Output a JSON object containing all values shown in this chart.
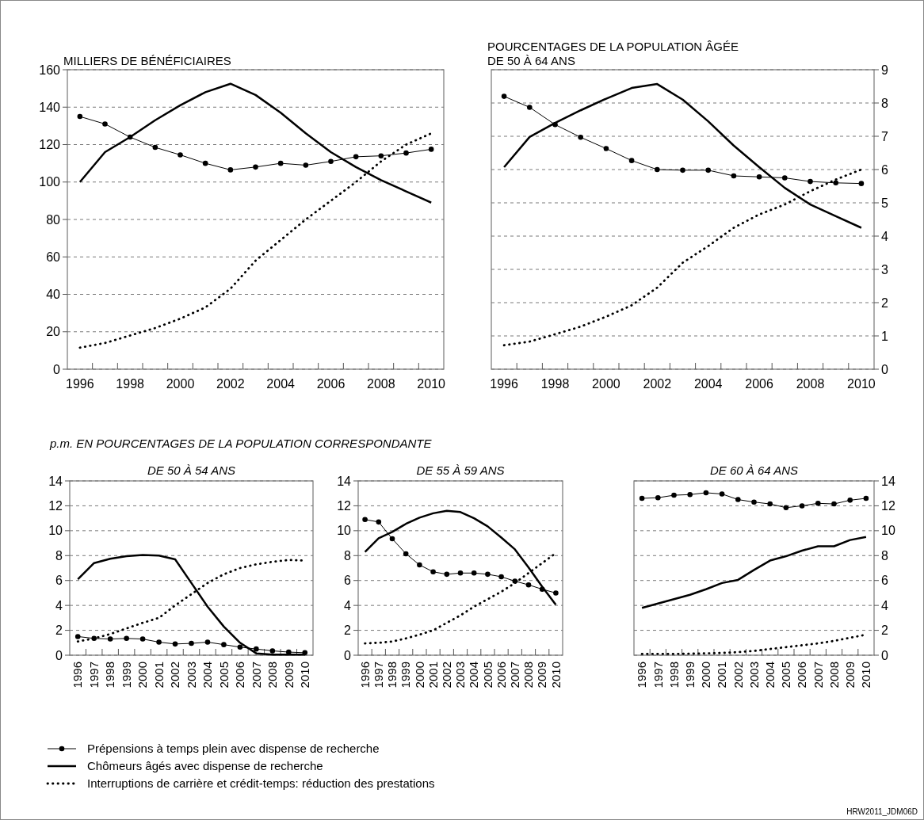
{
  "chart_data": [
    {
      "type": "line",
      "ylabel": "MILLIERS DE BÉNÉFICIAIRES",
      "categories": [
        "1996",
        null,
        "1998",
        null,
        "2000",
        null,
        "2002",
        null,
        "2004",
        null,
        "2006",
        null,
        "2008",
        null,
        "2010"
      ],
      "ylim": [
        0,
        160
      ],
      "yticks": [
        0,
        20,
        40,
        60,
        80,
        100,
        120,
        140,
        160
      ],
      "grid": "y",
      "legend": "bottom",
      "series": [
        {
          "name": "Prépensions à temps plein avec dispense de recherche",
          "color": "#000000",
          "marker": "circle",
          "line_style": "solid",
          "values": [
            135,
            131,
            124,
            118.5,
            114.5,
            110,
            106.5,
            108,
            110,
            109,
            111,
            113.5,
            114,
            115.5,
            117.5
          ]
        },
        {
          "name": "Chômeurs âgés avec dispense de recherche",
          "color": "#000000",
          "marker": "none",
          "line_style": "solid",
          "values": [
            100,
            116,
            124,
            133,
            141,
            148,
            152.5,
            146.5,
            137,
            126,
            116,
            108,
            101,
            95,
            89
          ]
        },
        {
          "name": "Interruptions de carrière et crédit-temps: réduction des prestations",
          "color": "#000000",
          "marker": "none",
          "line_style": "dotted",
          "values": [
            11.5,
            14,
            18,
            22,
            27,
            33,
            43,
            58,
            69,
            80,
            90,
            100,
            111,
            120,
            126
          ]
        }
      ]
    },
    {
      "type": "line",
      "y2label": "POURCENTAGES DE LA POPULATION ÂGÉE DE 50 À 64 ANS",
      "categories": [
        "1996",
        null,
        "1998",
        null,
        "2000",
        null,
        "2002",
        null,
        "2004",
        null,
        "2006",
        null,
        "2008",
        null,
        "2010"
      ],
      "y2lim": [
        0,
        9
      ],
      "y2ticks": [
        0,
        1,
        2,
        3,
        4,
        5,
        6,
        7,
        8,
        9
      ],
      "grid": "y",
      "series": [
        {
          "color": "#000000",
          "marker": "circle",
          "line_style": "solid",
          "axis": "y2",
          "values": [
            8.2,
            7.87,
            7.35,
            6.97,
            6.63,
            6.27,
            6.0,
            5.98,
            5.98,
            5.81,
            5.78,
            5.75,
            5.64,
            5.6,
            5.58
          ]
        },
        {
          "color": "#000000",
          "marker": "none",
          "line_style": "solid",
          "axis": "y2",
          "values": [
            6.07,
            6.98,
            7.4,
            7.78,
            8.13,
            8.45,
            8.57,
            8.1,
            7.45,
            6.72,
            6.07,
            5.45,
            4.95,
            4.6,
            4.25
          ]
        },
        {
          "color": "#000000",
          "marker": "none",
          "line_style": "dotted",
          "axis": "y2",
          "values": [
            0.72,
            0.83,
            1.05,
            1.28,
            1.58,
            1.92,
            2.45,
            3.2,
            3.7,
            4.25,
            4.65,
            4.95,
            5.35,
            5.7,
            6.0
          ]
        }
      ]
    },
    {
      "type": "line",
      "subtitle": "p.m. EN POURCENTAGES DE LA POPULATION CORRESPONDANTE",
      "title": "DE 50 À 54 ANS",
      "categories": [
        "1996",
        "1997",
        "1998",
        "1999",
        "2000",
        "2001",
        "2002",
        "2003",
        "2004",
        "2005",
        "2006",
        "2007",
        "2008",
        "2009",
        "2010"
      ],
      "ylim": [
        0,
        14
      ],
      "yticks": [
        0,
        2,
        4,
        6,
        8,
        10,
        12,
        14
      ],
      "grid": "y",
      "series": [
        {
          "color": "#000000",
          "marker": "circle",
          "line_style": "solid",
          "values": [
            1.5,
            1.35,
            1.3,
            1.35,
            1.3,
            1.05,
            0.9,
            0.95,
            1.05,
            0.85,
            0.65,
            0.5,
            0.35,
            0.25,
            0.2
          ]
        },
        {
          "color": "#000000",
          "marker": "none",
          "line_style": "solid",
          "values": [
            6.1,
            7.4,
            7.75,
            7.95,
            8.05,
            8.0,
            7.7,
            5.8,
            3.9,
            2.3,
            1.0,
            0.15,
            0.05,
            0.05,
            0.05
          ]
        },
        {
          "color": "#000000",
          "marker": "none",
          "line_style": "dotted",
          "values": [
            1.1,
            1.35,
            1.7,
            2.15,
            2.6,
            3.0,
            4.0,
            4.9,
            5.8,
            6.5,
            7.0,
            7.3,
            7.5,
            7.65,
            7.6
          ]
        }
      ]
    },
    {
      "type": "line",
      "title": "DE 55 À 59 ANS",
      "categories": [
        "1996",
        "1997",
        "1998",
        "1999",
        "2000",
        "2001",
        "2002",
        "2003",
        "2004",
        "2005",
        "2006",
        "2007",
        "2008",
        "2009",
        "2010"
      ],
      "ylim": [
        0,
        14
      ],
      "yticks": [
        0,
        2,
        4,
        6,
        8,
        10,
        12,
        14
      ],
      "grid": "y",
      "series": [
        {
          "color": "#000000",
          "marker": "circle",
          "line_style": "solid",
          "values": [
            10.9,
            10.7,
            9.35,
            8.15,
            7.25,
            6.7,
            6.5,
            6.6,
            6.6,
            6.5,
            6.3,
            5.95,
            5.65,
            5.3,
            5.0
          ]
        },
        {
          "color": "#000000",
          "marker": "none",
          "line_style": "solid",
          "values": [
            8.3,
            9.4,
            9.9,
            10.55,
            11.05,
            11.4,
            11.6,
            11.5,
            11.0,
            10.35,
            9.45,
            8.5,
            7.05,
            5.5,
            4.05
          ]
        },
        {
          "color": "#000000",
          "marker": "none",
          "line_style": "dotted",
          "values": [
            0.95,
            1.0,
            1.1,
            1.35,
            1.65,
            2.0,
            2.6,
            3.2,
            3.9,
            4.5,
            5.1,
            5.8,
            6.6,
            7.4,
            8.2
          ]
        }
      ]
    },
    {
      "type": "line",
      "title": "DE 60 À 64 ANS",
      "categories": [
        "1996",
        "1997",
        "1998",
        "1999",
        "2000",
        "2001",
        "2002",
        "2003",
        "2004",
        "2005",
        "2006",
        "2007",
        "2008",
        "2009",
        "2010"
      ],
      "y2lim": [
        0,
        14
      ],
      "y2ticks": [
        0,
        2,
        4,
        6,
        8,
        10,
        12,
        14
      ],
      "grid": "y",
      "annotations": [
        "HRW2011_JDM06D"
      ],
      "series": [
        {
          "color": "#000000",
          "marker": "circle",
          "line_style": "solid",
          "axis": "y2",
          "values": [
            12.6,
            12.65,
            12.85,
            12.9,
            13.05,
            12.95,
            12.5,
            12.3,
            12.15,
            11.85,
            12.0,
            12.2,
            12.15,
            12.45,
            12.6
          ]
        },
        {
          "color": "#000000",
          "marker": "none",
          "line_style": "solid",
          "axis": "y2",
          "values": [
            3.8,
            4.15,
            4.5,
            4.85,
            5.3,
            5.8,
            6.05,
            6.85,
            7.6,
            7.95,
            8.4,
            8.75,
            8.75,
            9.25,
            9.5
          ]
        },
        {
          "color": "#000000",
          "marker": "none",
          "line_style": "dotted",
          "axis": "y2",
          "values": [
            0.1,
            0.1,
            0.1,
            0.12,
            0.15,
            0.18,
            0.25,
            0.35,
            0.5,
            0.65,
            0.8,
            0.95,
            1.15,
            1.4,
            1.65
          ]
        }
      ]
    }
  ]
}
